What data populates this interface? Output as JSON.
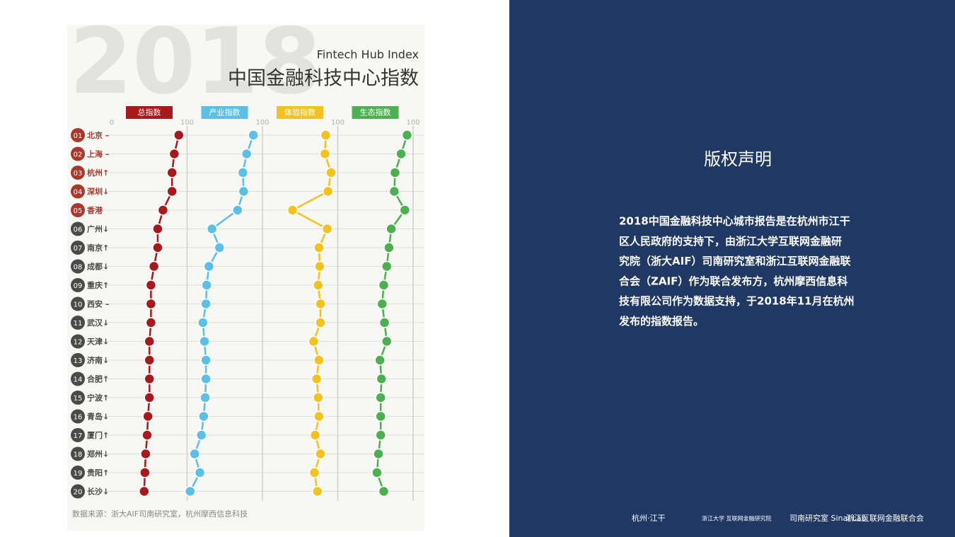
{
  "chart_data": {
    "type": "line",
    "watermark": "2018",
    "subtitle": "Fintech Hub Index",
    "title": "中国金融科技中心指数",
    "source": "数据来源：浙大AIF司南研究室，杭州摩西信息科技",
    "ranks": [
      "01",
      "02",
      "03",
      "04",
      "05",
      "06",
      "07",
      "08",
      "09",
      "10",
      "11",
      "12",
      "13",
      "14",
      "15",
      "16",
      "17",
      "18",
      "19",
      "20"
    ],
    "rank_colors": [
      "#a8382c",
      "#a8382c",
      "#a8382c",
      "#a8382c",
      "#a8382c",
      "#4a4a4a",
      "#4a4a4a",
      "#4a4a4a",
      "#4a4a4a",
      "#4a4a4a",
      "#4a4a4a",
      "#4a4a4a",
      "#4a4a4a",
      "#4a4a4a",
      "#4a4a4a",
      "#4a4a4a",
      "#4a4a4a",
      "#4a4a4a",
      "#4a4a4a",
      "#4a4a4a"
    ],
    "categories": [
      "北京 –",
      "上海 –",
      "杭州↑",
      "深圳↓",
      "香港",
      "广州↓",
      "南京↑",
      "成都↓",
      "重庆↑",
      "西安 –",
      "武汉↓",
      "天津↓",
      "济南↓",
      "合肥↑",
      "宁波↑",
      "青岛↓",
      "厦门↑",
      "郑州↓",
      "贵阳↑",
      "长沙↓"
    ],
    "xlim": [
      0,
      100
    ],
    "xticks": [
      0,
      100
    ],
    "grid": true,
    "series": [
      {
        "name": "总指数",
        "color": "#a8191c",
        "values": [
          89,
          83,
          80,
          80,
          68,
          61,
          61,
          56,
          52,
          52,
          52,
          50,
          50,
          50,
          50,
          48,
          47,
          45,
          44,
          43
        ]
      },
      {
        "name": "产业指数",
        "color": "#5bbfe8",
        "values": [
          88,
          79,
          74,
          75,
          67,
          33,
          43,
          29,
          26,
          25,
          21,
          23,
          25,
          25,
          24,
          22,
          19,
          10,
          17,
          4
        ]
      },
      {
        "name": "体验指数",
        "color": "#f4c21e",
        "values": [
          84,
          83,
          91,
          87,
          40,
          86,
          75,
          76,
          74,
          77,
          77,
          68,
          75,
          72,
          74,
          75,
          70,
          77,
          69,
          73
        ]
      },
      {
        "name": "生态指数",
        "color": "#4caf50",
        "values": [
          92,
          84,
          76,
          75,
          89,
          71,
          68,
          65,
          61,
          59,
          62,
          65,
          56,
          58,
          57,
          57,
          57,
          54,
          52,
          61
        ]
      }
    ]
  },
  "notice": {
    "title": "版权声明",
    "lines": [
      "2018中国金融科技中心城市报告是在杭州市江干",
      "区人民政府的支持下，由浙江大学互联网金融研",
      "究院（浙大AIF）司南研究室和浙江互联网金融联",
      "合会（ZAIF）作为联合发布方，杭州摩西信息科",
      "技有限公司作为数据支持，于2018年11月在杭州",
      "发布的指数报告。"
    ]
  },
  "logos": [
    "杭州·江干",
    "浙江大学 互联网金融研究院",
    "司南研究室 Sinai Lab",
    "浙江互联网金融联合会"
  ]
}
